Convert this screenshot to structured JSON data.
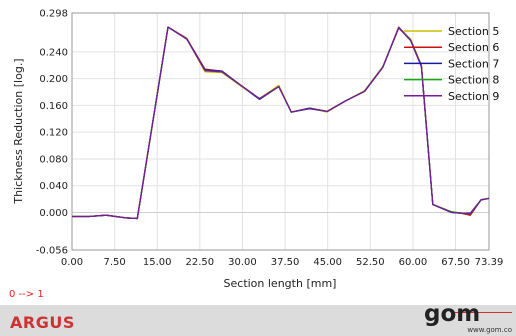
{
  "chart_data": {
    "type": "line",
    "title": "",
    "xlabel": "Section length [mm]",
    "ylabel": "Thickness Reduction [log.]",
    "xlim": [
      0,
      73.39
    ],
    "ylim": [
      -0.056,
      0.298
    ],
    "x_ticks": [
      "0.00",
      "7.50",
      "15.00",
      "22.50",
      "30.00",
      "37.50",
      "45.00",
      "52.50",
      "60.00",
      "67.50",
      "73.39"
    ],
    "y_ticks": [
      "0.298",
      "0.240",
      "0.200",
      "0.160",
      "0.120",
      "0.080",
      "0.040",
      "0.000",
      "-0.056"
    ],
    "legend_position": "top-right",
    "grid": true,
    "x": [
      0,
      3.0,
      6.0,
      9.5,
      11.5,
      16.9,
      20.2,
      23.4,
      26.4,
      29.7,
      33.0,
      36.4,
      38.6,
      41.8,
      44.9,
      48.2,
      51.5,
      54.7,
      57.5,
      59.6,
      61.5,
      63.5,
      66.8,
      68.5,
      70.1,
      72.0,
      73.39
    ],
    "series": [
      {
        "name": "Section 5",
        "color": "#c8c000",
        "values": [
          -0.006,
          -0.006,
          -0.004,
          -0.008,
          -0.009,
          0.277,
          0.26,
          0.21,
          0.209,
          0.189,
          0.17,
          0.19,
          0.15,
          0.156,
          0.15,
          0.167,
          0.182,
          0.218,
          0.275,
          0.259,
          0.22,
          0.012,
          0.001,
          -0.001,
          -0.004,
          0.019,
          0.021
        ]
      },
      {
        "name": "Section 6",
        "color": "#cc1111",
        "values": [
          -0.006,
          -0.006,
          -0.004,
          -0.008,
          -0.009,
          0.277,
          0.26,
          0.214,
          0.211,
          0.19,
          0.17,
          0.188,
          0.15,
          0.156,
          0.151,
          0.167,
          0.181,
          0.217,
          0.277,
          0.258,
          0.22,
          0.012,
          0.001,
          -0.001,
          -0.004,
          0.019,
          0.021
        ]
      },
      {
        "name": "Section 7",
        "color": "#1a1aa0",
        "values": [
          -0.006,
          -0.006,
          -0.004,
          -0.008,
          -0.009,
          0.277,
          0.259,
          0.213,
          0.211,
          0.19,
          0.169,
          0.188,
          0.15,
          0.155,
          0.151,
          0.167,
          0.181,
          0.217,
          0.276,
          0.257,
          0.218,
          0.012,
          0.0,
          -0.001,
          -0.001,
          0.019,
          0.021
        ]
      },
      {
        "name": "Section 8",
        "color": "#11aa11",
        "values": [
          -0.006,
          -0.006,
          -0.004,
          -0.008,
          -0.009,
          0.277,
          0.259,
          0.212,
          0.21,
          0.19,
          0.17,
          0.188,
          0.15,
          0.156,
          0.151,
          0.167,
          0.181,
          0.217,
          0.276,
          0.258,
          0.219,
          0.012,
          0.001,
          -0.001,
          -0.002,
          0.019,
          0.021
        ]
      },
      {
        "name": "Section 9",
        "color": "#7a1a9a",
        "values": [
          -0.006,
          -0.006,
          -0.004,
          -0.008,
          -0.009,
          0.277,
          0.259,
          0.212,
          0.21,
          0.19,
          0.17,
          0.188,
          0.15,
          0.156,
          0.151,
          0.167,
          0.181,
          0.217,
          0.276,
          0.257,
          0.218,
          0.012,
          0.0,
          -0.001,
          -0.002,
          0.019,
          0.021
        ]
      }
    ]
  },
  "footer": {
    "note": "0 --> 1",
    "brand": "ARGUS",
    "logo_text": "gom",
    "logo_url": "www.gom.co"
  }
}
